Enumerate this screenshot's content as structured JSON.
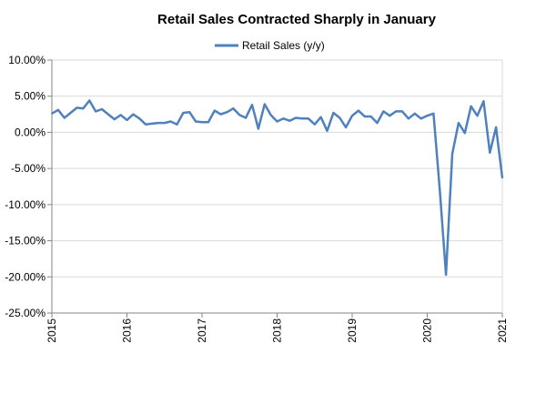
{
  "colors": {
    "series": "#4F81BD",
    "axis": "#868686",
    "grid": "#D9D9D9",
    "text": "#000000",
    "background": "#FFFFFF"
  },
  "chart_data": {
    "type": "line",
    "title": "Retail Sales Contracted Sharply in January",
    "xlabel": "",
    "ylabel": "",
    "legend_position": "top-center",
    "grid": {
      "x": false,
      "y": true
    },
    "ylim": [
      -25,
      10
    ],
    "y_ticks": [
      10,
      5,
      0,
      -5,
      -10,
      -15,
      -20,
      -25
    ],
    "y_tick_labels": [
      "10.00%",
      "5.00%",
      "0.00%",
      "-5.00%",
      "-10.00%",
      "-15.00%",
      "-20.00%",
      "-25.00%"
    ],
    "x_ticks": [
      "2015-01",
      "2016-01",
      "2017-01",
      "2018-01",
      "2019-01",
      "2020-01",
      "2021-01"
    ],
    "x_tick_labels": [
      "2015",
      "2016",
      "2017",
      "2018",
      "2019",
      "2020",
      "2021"
    ],
    "x_range": [
      "2015-01",
      "2021-01"
    ],
    "series": [
      {
        "name": "Retail Sales (y/y)",
        "x": [
          "2015-01",
          "2015-02",
          "2015-03",
          "2015-04",
          "2015-05",
          "2015-06",
          "2015-07",
          "2015-08",
          "2015-09",
          "2015-10",
          "2015-11",
          "2015-12",
          "2016-01",
          "2016-02",
          "2016-03",
          "2016-04",
          "2016-05",
          "2016-06",
          "2016-07",
          "2016-08",
          "2016-09",
          "2016-10",
          "2016-11",
          "2016-12",
          "2017-01",
          "2017-02",
          "2017-03",
          "2017-04",
          "2017-05",
          "2017-06",
          "2017-07",
          "2017-08",
          "2017-09",
          "2017-10",
          "2017-11",
          "2017-12",
          "2018-01",
          "2018-02",
          "2018-03",
          "2018-04",
          "2018-05",
          "2018-06",
          "2018-07",
          "2018-08",
          "2018-09",
          "2018-10",
          "2018-11",
          "2018-12",
          "2019-01",
          "2019-02",
          "2019-03",
          "2019-04",
          "2019-05",
          "2019-06",
          "2019-07",
          "2019-08",
          "2019-09",
          "2019-10",
          "2019-11",
          "2019-12",
          "2020-01",
          "2020-02",
          "2020-03",
          "2020-04",
          "2020-05",
          "2020-06",
          "2020-07",
          "2020-08",
          "2020-09",
          "2020-10",
          "2020-11",
          "2020-12",
          "2021-01"
        ],
        "values": [
          2.6,
          3.1,
          2.0,
          2.7,
          3.4,
          3.3,
          4.4,
          2.9,
          3.2,
          2.5,
          1.8,
          2.4,
          1.7,
          2.5,
          1.9,
          1.1,
          1.2,
          1.3,
          1.3,
          1.5,
          1.1,
          2.7,
          2.8,
          1.5,
          1.4,
          1.4,
          3.0,
          2.5,
          2.8,
          3.3,
          2.4,
          2.0,
          3.8,
          0.5,
          3.9,
          2.4,
          1.5,
          1.9,
          1.6,
          2.0,
          1.9,
          1.9,
          1.1,
          2.1,
          0.2,
          2.7,
          2.0,
          0.7,
          2.3,
          3.0,
          2.2,
          2.2,
          1.3,
          2.9,
          2.3,
          2.9,
          2.9,
          1.9,
          2.6,
          1.9,
          2.3,
          2.6,
          -8.0,
          -19.7,
          -3.0,
          1.3,
          -0.1,
          3.6,
          2.3,
          4.3,
          -2.8,
          0.7,
          -6.3
        ]
      }
    ]
  }
}
